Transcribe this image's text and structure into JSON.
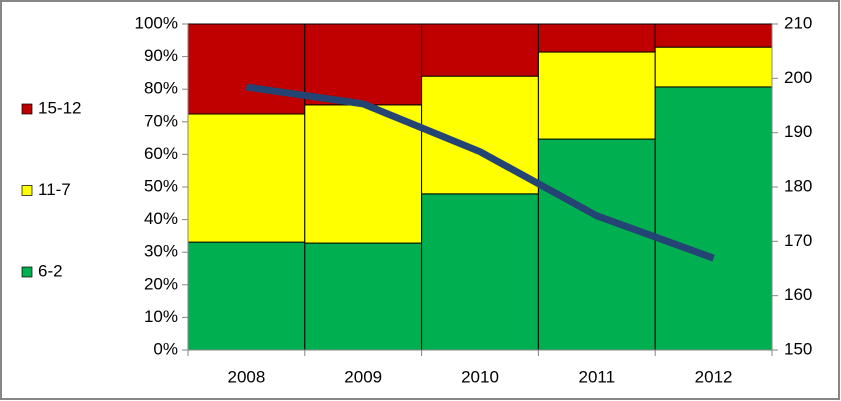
{
  "chart_data": {
    "type": "stacked-bar-line",
    "categories": [
      "2008",
      "2009",
      "2010",
      "2011",
      "2012"
    ],
    "series": [
      {
        "name": "6-2",
        "color": "#00b050",
        "values": [
          33.1,
          32.8,
          47.9,
          64.7,
          80.7
        ]
      },
      {
        "name": "11-7",
        "color": "#ffff00",
        "values": [
          39.3,
          42.4,
          36.1,
          26.7,
          12.2
        ]
      },
      {
        "name": "15-12",
        "color": "#c00000",
        "values": [
          27.6,
          24.8,
          16.0,
          8.6,
          7.1
        ]
      }
    ],
    "line": {
      "color": "#244573",
      "axis": "y2",
      "values": [
        198.4,
        195.3,
        186.5,
        174.7,
        166.9
      ]
    },
    "ylim": [
      0,
      100
    ],
    "yticks": [
      {
        "value": 0,
        "label": "0%"
      },
      {
        "value": 10,
        "label": "10%"
      },
      {
        "value": 20,
        "label": "20%"
      },
      {
        "value": 30,
        "label": "30%"
      },
      {
        "value": 40,
        "label": "40%"
      },
      {
        "value": 50,
        "label": "50%"
      },
      {
        "value": 60,
        "label": "60%"
      },
      {
        "value": 70,
        "label": "70%"
      },
      {
        "value": 80,
        "label": "80%"
      },
      {
        "value": 90,
        "label": "90%"
      },
      {
        "value": 100,
        "label": "100%"
      }
    ],
    "y2lim": [
      150,
      210
    ],
    "y2ticks": [
      150,
      160,
      170,
      180,
      190,
      200,
      210
    ],
    "legend": "left"
  }
}
